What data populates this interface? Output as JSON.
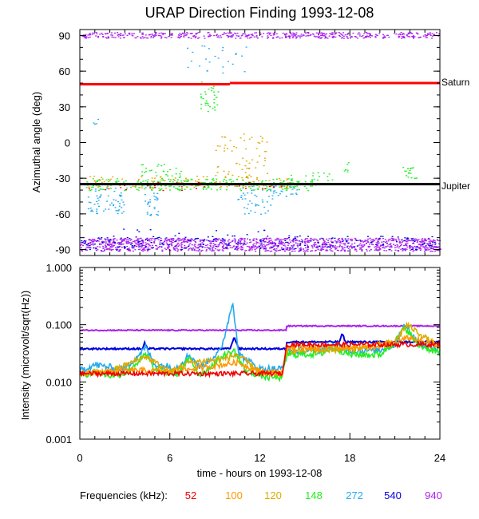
{
  "chart_data": [
    {
      "type": "scatter",
      "title": "URAP Direction Finding  1993-12-08",
      "xlabel": "time - hours on 1993-12-08",
      "ylabel": "Azimuthal angle (deg)",
      "xlim": [
        0,
        24
      ],
      "ylim": [
        -95,
        95
      ],
      "yticks": [
        90,
        60,
        30,
        0,
        -30,
        -60,
        -90
      ],
      "ytick_labels": [
        "90",
        "60",
        "30",
        "0",
        "-30",
        "-60",
        "-90"
      ],
      "reference_lines": [
        {
          "name": "Saturn",
          "value_before_10h": 49,
          "value_after_10h": 50,
          "color": "#ff0000"
        },
        {
          "name": "Jupiter",
          "value": -35,
          "color": "#000000"
        }
      ],
      "series": [
        {
          "name": "940",
          "bands": [
            [
              88,
              92
            ],
            [
              -88,
              -82
            ]
          ],
          "notes": "dense emission near +90 and -85 all day"
        },
        {
          "name": "540",
          "bands": [
            [
              -88,
              -78
            ]
          ],
          "notes": "scattered points near -85"
        },
        {
          "name": "272",
          "bands": [
            [
              -55,
              -35
            ],
            [
              -45,
              -60
            ]
          ],
          "notes": "scattered near 0-3h, 4.5h, 11-12h, and near +75 at 7-11h"
        },
        {
          "name": "148",
          "bands": [
            [
              -38,
              -30
            ],
            [
              30,
              45
            ]
          ],
          "notes": "cluster near -35 through 0-15h, near +40 at 8-9h"
        },
        {
          "name": "120",
          "bands": [
            [
              -30,
              5
            ]
          ],
          "notes": "scattered 9-12h"
        },
        {
          "name": "100",
          "bands": [
            [
              -35,
              -28
            ]
          ],
          "notes": "scattered near -35"
        },
        {
          "name": "52",
          "bands": [
            [
              -38,
              -33
            ]
          ],
          "notes": "sparse near -36"
        }
      ]
    },
    {
      "type": "line",
      "xlabel": "time - hours on 1993-12-08",
      "ylabel": "Intensity (microvolt/sqrt(Hz))",
      "xlim": [
        0,
        24
      ],
      "ylim": [
        0.001,
        1.0
      ],
      "yscale": "log",
      "ytick_labels": [
        "1.000",
        "0.100",
        "0.010",
        "0.001"
      ],
      "xticks": [
        0,
        6,
        12,
        18,
        24
      ],
      "xtick_labels": [
        "0",
        "6",
        "12",
        "18",
        "24"
      ],
      "series": [
        {
          "name": "940",
          "points": [
            [
              0,
              0.08
            ],
            [
              13.8,
              0.08
            ],
            [
              13.8,
              0.095
            ],
            [
              24,
              0.095
            ]
          ]
        },
        {
          "name": "540",
          "points": [
            [
              0,
              0.038
            ],
            [
              4.2,
              0.038
            ],
            [
              4.3,
              0.05
            ],
            [
              4.5,
              0.038
            ],
            [
              10,
              0.038
            ],
            [
              10.3,
              0.06
            ],
            [
              10.6,
              0.038
            ],
            [
              13.8,
              0.038
            ],
            [
              13.8,
              0.05
            ],
            [
              17.3,
              0.05
            ],
            [
              17.5,
              0.07
            ],
            [
              17.7,
              0.05
            ],
            [
              24,
              0.05
            ]
          ]
        },
        {
          "name": "272",
          "points": [
            [
              0,
              0.016
            ],
            [
              1,
              0.02
            ],
            [
              2,
              0.018
            ],
            [
              3,
              0.017
            ],
            [
              4.4,
              0.04
            ],
            [
              5,
              0.02
            ],
            [
              6.5,
              0.018
            ],
            [
              7.3,
              0.03
            ],
            [
              8,
              0.018
            ],
            [
              9.4,
              0.035
            ],
            [
              10.2,
              0.25
            ],
            [
              10.6,
              0.03
            ],
            [
              12,
              0.017
            ],
            [
              13.5,
              0.017
            ],
            [
              13.8,
              0.035
            ],
            [
              16,
              0.036
            ],
            [
              17,
              0.045
            ],
            [
              18,
              0.035
            ],
            [
              20,
              0.036
            ],
            [
              21,
              0.045
            ],
            [
              21.6,
              0.1
            ],
            [
              22.5,
              0.05
            ],
            [
              24,
              0.035
            ]
          ]
        },
        {
          "name": "148",
          "points": [
            [
              0,
              0.013
            ],
            [
              1,
              0.015
            ],
            [
              2,
              0.013
            ],
            [
              3,
              0.014
            ],
            [
              4.4,
              0.03
            ],
            [
              5,
              0.016
            ],
            [
              6.5,
              0.014
            ],
            [
              7.3,
              0.025
            ],
            [
              8,
              0.013
            ],
            [
              9.5,
              0.028
            ],
            [
              10.3,
              0.035
            ],
            [
              11,
              0.016
            ],
            [
              12.5,
              0.012
            ],
            [
              13.5,
              0.012
            ],
            [
              13.8,
              0.03
            ],
            [
              16,
              0.031
            ],
            [
              17,
              0.04
            ],
            [
              18,
              0.03
            ],
            [
              20,
              0.03
            ],
            [
              21,
              0.05
            ],
            [
              21.7,
              0.09
            ],
            [
              22.5,
              0.045
            ],
            [
              24,
              0.032
            ]
          ]
        },
        {
          "name": "120",
          "points": [
            [
              0,
              0.014
            ],
            [
              2,
              0.015
            ],
            [
              4.4,
              0.028
            ],
            [
              6,
              0.015
            ],
            [
              7.3,
              0.022
            ],
            [
              9.5,
              0.025
            ],
            [
              10.5,
              0.03
            ],
            [
              12,
              0.015
            ],
            [
              13.5,
              0.014
            ],
            [
              13.8,
              0.035
            ],
            [
              18,
              0.037
            ],
            [
              21,
              0.05
            ],
            [
              21.8,
              0.1
            ],
            [
              24,
              0.04
            ]
          ]
        },
        {
          "name": "100",
          "points": [
            [
              0,
              0.014
            ],
            [
              4,
              0.016
            ],
            [
              6,
              0.015
            ],
            [
              9.5,
              0.02
            ],
            [
              10.5,
              0.022
            ],
            [
              12,
              0.015
            ],
            [
              13.5,
              0.014
            ],
            [
              13.8,
              0.04
            ],
            [
              20,
              0.04
            ],
            [
              22,
              0.06
            ],
            [
              24,
              0.04
            ]
          ]
        },
        {
          "name": "52",
          "points": [
            [
              0,
              0.014
            ],
            [
              6,
              0.014
            ],
            [
              12,
              0.014
            ],
            [
              13.5,
              0.014
            ],
            [
              13.8,
              0.045
            ],
            [
              24,
              0.045
            ]
          ]
        }
      ]
    }
  ],
  "legend": {
    "label": "Frequencies (kHz):",
    "entries": [
      {
        "name": "52",
        "color": "#ee0000"
      },
      {
        "name": "100",
        "color": "#ff9900"
      },
      {
        "name": "120",
        "color": "#ddaa00"
      },
      {
        "name": "148",
        "color": "#22ee22"
      },
      {
        "name": "272",
        "color": "#22aaee"
      },
      {
        "name": "540",
        "color": "#0000dd"
      },
      {
        "name": "940",
        "color": "#aa22ee"
      }
    ]
  }
}
